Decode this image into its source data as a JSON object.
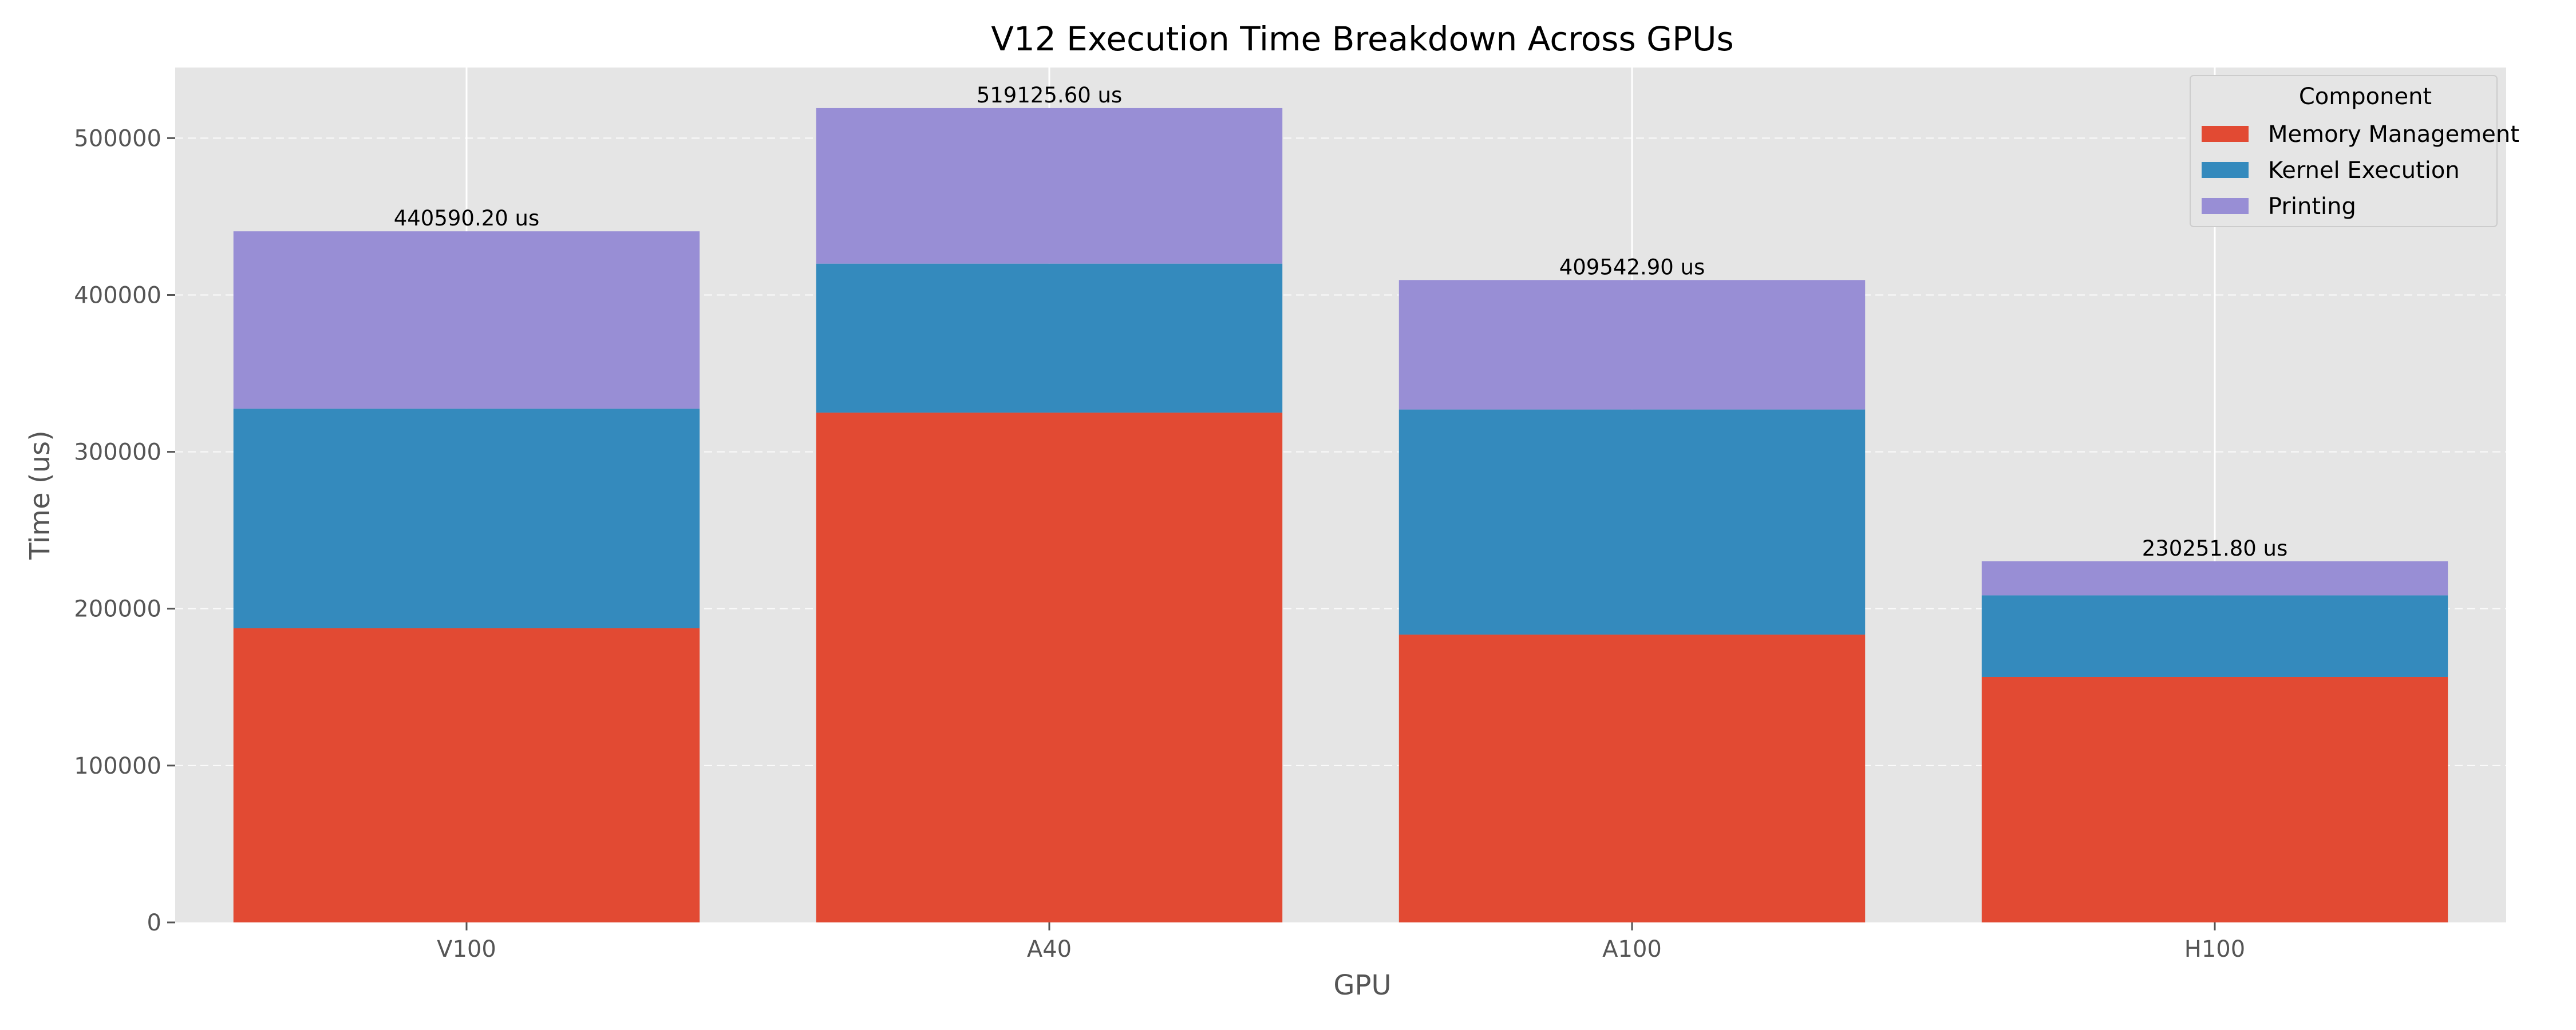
{
  "chart_data": {
    "type": "bar",
    "stacked": true,
    "title": "V12 Execution Time Breakdown Across GPUs",
    "xlabel": "GPU",
    "ylabel": "Time (us)",
    "categories": [
      "V100",
      "A40",
      "A100",
      "H100"
    ],
    "ylim": [
      0,
      545000
    ],
    "yticks": [
      0,
      100000,
      200000,
      300000,
      400000,
      500000
    ],
    "ytick_labels": [
      "0",
      "100000",
      "200000",
      "300000",
      "400000",
      "500000"
    ],
    "grid": true,
    "legend": {
      "title": "Component",
      "placement": "top-right"
    },
    "series": [
      {
        "name": "Memory Management",
        "color": "#E24A33",
        "values": [
          187500,
          325000,
          183500,
          156500
        ]
      },
      {
        "name": "Kernel Execution",
        "color": "#348ABD",
        "values": [
          140000,
          95000,
          143500,
          52000
        ]
      },
      {
        "name": "Printing",
        "color": "#988ED5",
        "values": [
          113090.2,
          99125.6,
          82542.9,
          21751.8
        ]
      }
    ],
    "totals": [
      440590.2,
      519125.6,
      409542.9,
      230251.8
    ],
    "total_labels": [
      "440590.20 us",
      "519125.60 us",
      "409542.90 us",
      "230251.80 us"
    ]
  }
}
